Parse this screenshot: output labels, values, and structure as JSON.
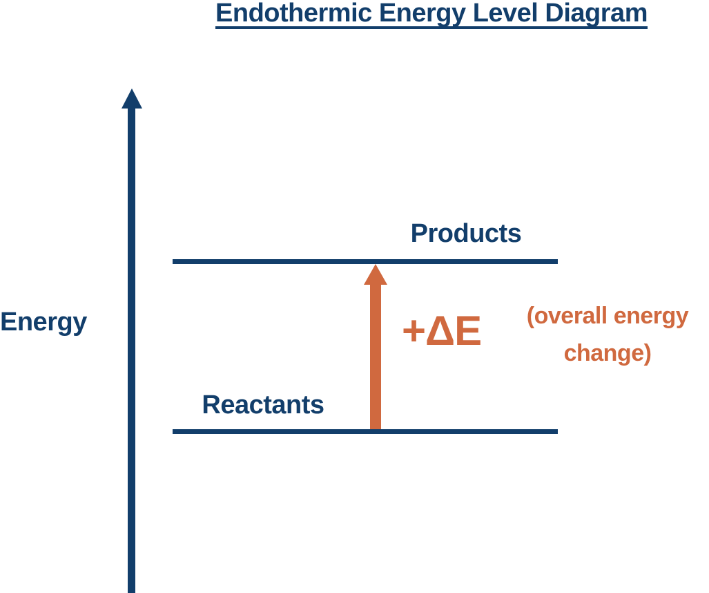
{
  "title": {
    "text": "Endothermic Energy Level Diagram"
  },
  "colors": {
    "navy": "#123E6B",
    "orange": "#D0693F"
  },
  "y_axis": {
    "label": "Energy",
    "direction": "up"
  },
  "levels": {
    "products": {
      "label": "Products",
      "position": "upper"
    },
    "reactants": {
      "label": "Reactants",
      "position": "lower"
    }
  },
  "energy_change": {
    "symbol": "+ΔE",
    "note_line1": "(overall energy",
    "note_line2": "change)",
    "direction": "up"
  }
}
